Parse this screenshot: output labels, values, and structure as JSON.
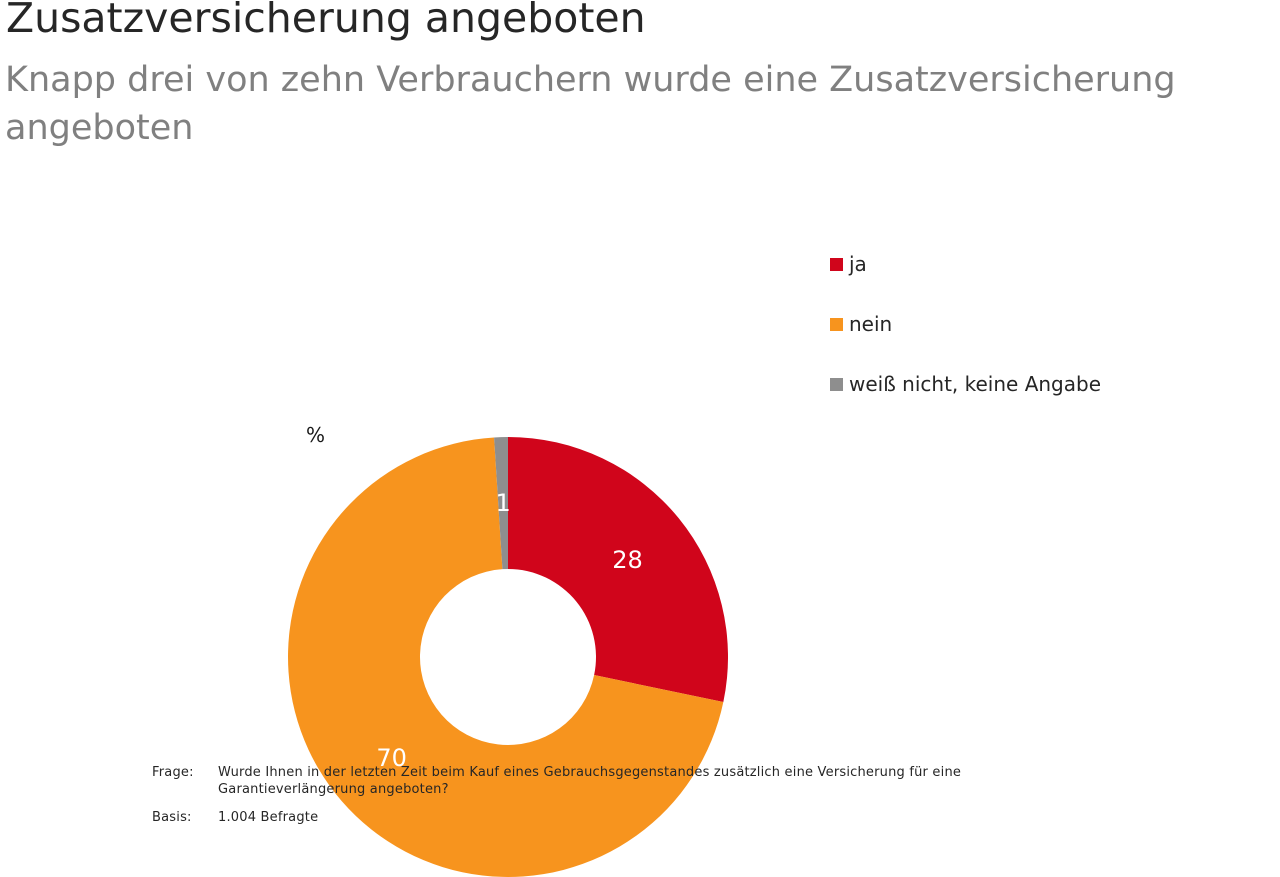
{
  "header": {
    "title": "Zusatzversicherung angeboten",
    "subtitle": "Knapp drei von zehn Verbrauchern wurde eine Zusatzversicherung angeboten"
  },
  "chart_data": {
    "type": "pie",
    "subtype": "donut",
    "title": "Zusatzversicherung angeboten",
    "unit_label": "%",
    "categories": [
      "ja",
      "nein",
      "weiß nicht, keine Angabe"
    ],
    "values": [
      28,
      70,
      1
    ],
    "colors": [
      "#d0051b",
      "#f7941e",
      "#8e8e8e"
    ],
    "slice_label_color": "#ffffff",
    "start_angle_deg": 0,
    "clockwise": true,
    "inner_radius_ratio": 0.4,
    "legend_position": "right"
  },
  "legend": {
    "items": [
      {
        "label": "ja",
        "color": "#d0051b"
      },
      {
        "label": "nein",
        "color": "#f7941e"
      },
      {
        "label": "weiß nicht, keine Angabe",
        "color": "#8e8e8e"
      }
    ]
  },
  "footer": {
    "rows": [
      {
        "label": "Frage:",
        "text": "Wurde Ihnen in der letzten Zeit beim Kauf eines Gebrauchsgegenstandes zusätzlich eine Versicherung für eine Garantieverlängerung angeboten?"
      },
      {
        "label": "Basis:",
        "text": "1.004 Befragte"
      }
    ]
  }
}
